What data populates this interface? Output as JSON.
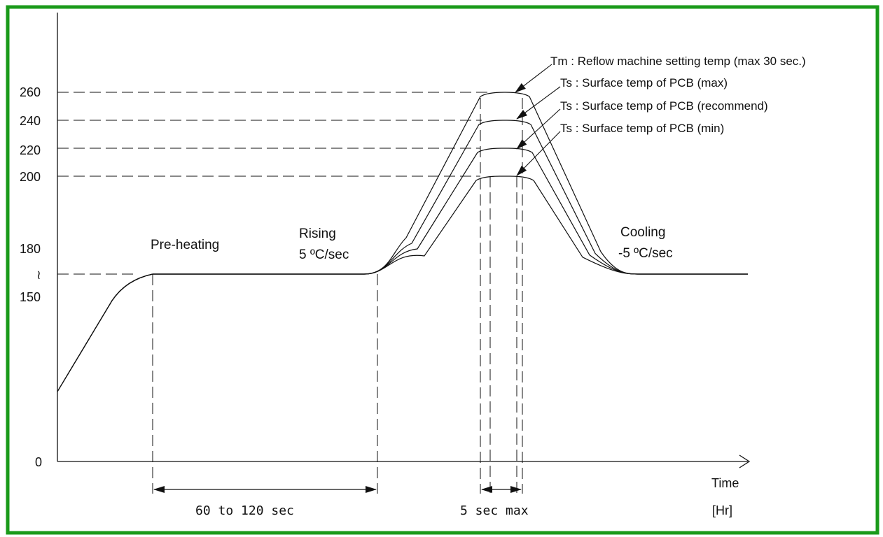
{
  "chart_data": {
    "type": "line",
    "title": "",
    "xlabel": "Time",
    "xunit": "[Hr]",
    "ylabel": "",
    "y_ticks": [
      "0",
      "150",
      "≀",
      "180",
      "200",
      "220",
      "240",
      "260"
    ],
    "series": [
      {
        "peak_temp": 260
      },
      {
        "peak_temp": 240
      },
      {
        "peak_temp": 220
      },
      {
        "peak_temp": 200
      }
    ],
    "annotations": {
      "preheat_line1": "Pre-heating",
      "rising_line1": "Rising",
      "rising_line2": "5 ºC/sec",
      "cooling_line1": "Cooling",
      "cooling_line2": "-5 ºC/sec",
      "preheat_duration": "60 to 120 sec",
      "peak_duration": "5 sec max",
      "legend_tm": "Tm : Reflow machine setting temp (max 30 sec.)",
      "legend_ts_max": "Ts : Surface temp of PCB (max)",
      "legend_ts_rec": "Ts : Surface temp of PCB (recommend)",
      "legend_ts_min": "Ts : Surface temp of PCB (min)"
    },
    "grid": false,
    "frame_color": "#1a9a1a"
  }
}
